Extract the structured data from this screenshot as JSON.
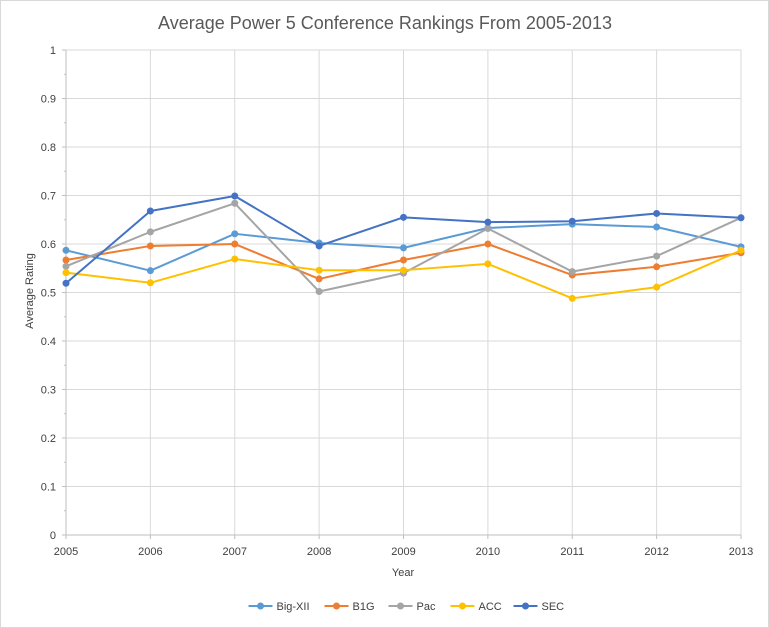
{
  "chart_data": {
    "type": "line",
    "title": "Average Power 5 Conference Rankings From 2005-2013",
    "xlabel": "Year",
    "ylabel": "Average Rating",
    "categories": [
      "2005",
      "2006",
      "2007",
      "2008",
      "2009",
      "2010",
      "2011",
      "2012",
      "2013"
    ],
    "ylim": [
      0,
      1
    ],
    "yticks": [
      "0",
      "0.1",
      "0.2",
      "0.3",
      "0.4",
      "0.5",
      "0.6",
      "0.7",
      "0.8",
      "0.9",
      "1"
    ],
    "grid": true,
    "legend_position": "bottom",
    "series": [
      {
        "name": "Big-XII",
        "color": "#5b9bd5",
        "values": [
          0.587,
          0.545,
          0.621,
          0.602,
          0.592,
          0.633,
          0.641,
          0.635,
          0.594
        ]
      },
      {
        "name": "B1G",
        "color": "#ed7d31",
        "values": [
          0.567,
          0.596,
          0.6,
          0.528,
          0.567,
          0.6,
          0.536,
          0.553,
          0.582
        ]
      },
      {
        "name": "Pac",
        "color": "#a5a5a5",
        "values": [
          0.554,
          0.625,
          0.684,
          0.502,
          0.54,
          0.632,
          0.543,
          0.575,
          0.654
        ]
      },
      {
        "name": "ACC",
        "color": "#ffc000",
        "values": [
          0.541,
          0.52,
          0.569,
          0.546,
          0.546,
          0.559,
          0.488,
          0.511,
          0.587
        ]
      },
      {
        "name": "SEC",
        "color": "#4472c4",
        "values": [
          0.519,
          0.668,
          0.699,
          0.596,
          0.655,
          0.645,
          0.647,
          0.663,
          0.654
        ]
      }
    ]
  }
}
